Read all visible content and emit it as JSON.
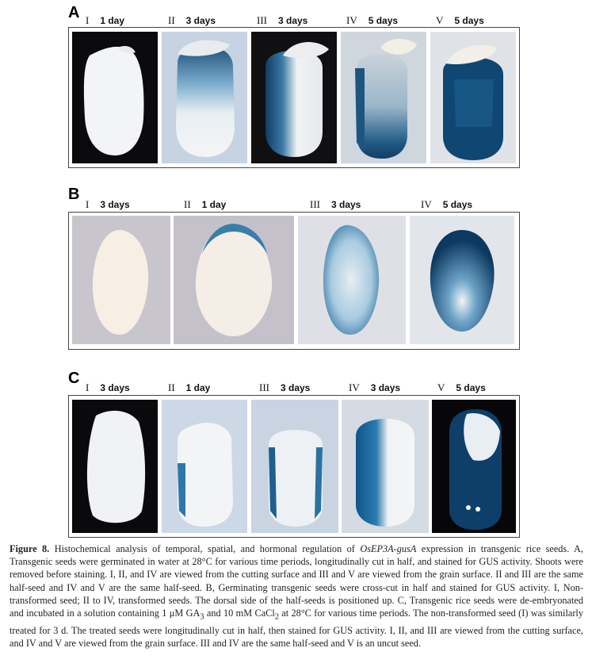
{
  "panel_a": {
    "letter": "A",
    "labels": [
      {
        "roman": "I",
        "days": "1 day"
      },
      {
        "roman": "II",
        "days": "3 days"
      },
      {
        "roman": "III",
        "days": "3 days"
      },
      {
        "roman": "IV",
        "days": "5 days"
      },
      {
        "roman": "V",
        "days": "5 days"
      }
    ]
  },
  "panel_b": {
    "letter": "B",
    "labels": [
      {
        "roman": "I",
        "days": "3 days"
      },
      {
        "roman": "II",
        "days": "1 day"
      },
      {
        "roman": "III",
        "days": "3 days"
      },
      {
        "roman": "IV",
        "days": "5 days"
      }
    ]
  },
  "panel_c": {
    "letter": "C",
    "labels": [
      {
        "roman": "I",
        "days": "3 days"
      },
      {
        "roman": "II",
        "days": "1 day"
      },
      {
        "roman": "III",
        "days": "3 days"
      },
      {
        "roman": "IV",
        "days": "3 days"
      },
      {
        "roman": "V",
        "days": "5 days"
      }
    ]
  },
  "caption": {
    "figure_label": "Figure 8.",
    "lead": "Histochemical analysis of temporal, spatial, and hormonal regulation of",
    "gene": "OsEP3A-gusA",
    "text_1": "expression in transgenic rice seeds. A, Transgenic seeds were germinated in water at 28°C for various time periods, longitudinally cut in half, and stained for GUS activity. Shoots were removed before staining. I, II, and IV are viewed from the cutting surface and III and V are viewed from the grain surface. II and III are the same half-seed and IV and V are the same half-seed. B, Germinating transgenic seeds were cross-cut in half and stained for GUS activity. I, Non-transformed seed; II to IV, transformed seeds. The dorsal side of the half-seeds is positioned up. C, Transgenic rice seeds were de-embryonated and incubated in a solution containing 1",
    "ga_unit": "μM",
    "ga": "GA",
    "ga_sub": "3",
    "text_2": "and 10 mM CaCl",
    "ca_sub": "2",
    "text_3": "at 28°C for various time periods. The non-transformed seed (I) was similarly treated for 3 d. The treated seeds were longitudinally cut in half, then stained for GUS activity. I, II, and III are viewed from the cutting surface, and IV and V are viewed from the grain surface. III and IV are the same half-seed and V is an uncut seed."
  }
}
